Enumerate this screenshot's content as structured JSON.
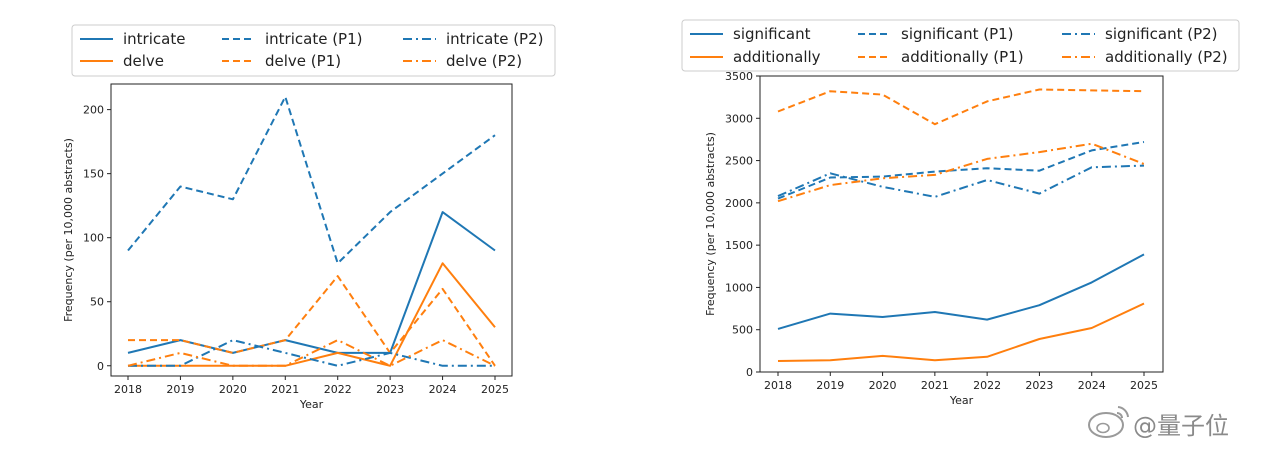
{
  "colors": {
    "blue": "#1f77b4",
    "orange": "#ff7f0e"
  },
  "watermark": {
    "text": "@量子位",
    "icon": "weibo-logo-icon"
  },
  "chart_data": [
    {
      "type": "line",
      "x": [
        2018,
        2019,
        2020,
        2021,
        2022,
        2023,
        2024,
        2025
      ],
      "xlabel": "Year",
      "ylabel": "Frequency (per 10,000 abstracts)",
      "ylim": [
        -8,
        220
      ],
      "yticks": [
        0,
        50,
        100,
        150,
        200
      ],
      "grid": false,
      "legend_position": "top",
      "series": [
        {
          "name": "intricate",
          "color": "#1f77b4",
          "style": "solid",
          "values": [
            10,
            20,
            10,
            20,
            10,
            10,
            120,
            90
          ]
        },
        {
          "name": "delve",
          "color": "#ff7f0e",
          "style": "solid",
          "values": [
            0,
            0,
            0,
            0,
            10,
            0,
            80,
            30
          ]
        },
        {
          "name": "intricate (P1)",
          "color": "#1f77b4",
          "style": "dashed",
          "values": [
            90,
            140,
            130,
            210,
            80,
            120,
            150,
            180
          ]
        },
        {
          "name": "delve (P1)",
          "color": "#ff7f0e",
          "style": "dashed",
          "values": [
            20,
            20,
            10,
            20,
            70,
            10,
            60,
            0
          ]
        },
        {
          "name": "intricate (P2)",
          "color": "#1f77b4",
          "style": "dashdot",
          "values": [
            0,
            0,
            20,
            10,
            0,
            10,
            0,
            0
          ]
        },
        {
          "name": "delve (P2)",
          "color": "#ff7f0e",
          "style": "dashdot",
          "values": [
            0,
            10,
            0,
            0,
            20,
            0,
            20,
            0
          ]
        }
      ]
    },
    {
      "type": "line",
      "x": [
        2018,
        2019,
        2020,
        2021,
        2022,
        2023,
        2024,
        2025
      ],
      "xlabel": "Year",
      "ylabel": "Frequency (per 10,000 abstracts)",
      "ylim": [
        0,
        3500
      ],
      "yticks": [
        0,
        500,
        1000,
        1500,
        2000,
        2500,
        3000,
        3500
      ],
      "grid": false,
      "legend_position": "top",
      "series": [
        {
          "name": "significant",
          "color": "#1f77b4",
          "style": "solid",
          "values": [
            510,
            690,
            650,
            710,
            620,
            790,
            1060,
            1390
          ]
        },
        {
          "name": "additionally",
          "color": "#ff7f0e",
          "style": "solid",
          "values": [
            130,
            140,
            190,
            140,
            180,
            390,
            520,
            810
          ]
        },
        {
          "name": "significant (P1)",
          "color": "#1f77b4",
          "style": "dashed",
          "values": [
            2050,
            2300,
            2310,
            2370,
            2410,
            2380,
            2620,
            2720
          ]
        },
        {
          "name": "additionally (P1)",
          "color": "#ff7f0e",
          "style": "dashed",
          "values": [
            3080,
            3320,
            3280,
            2930,
            3200,
            3340,
            3330,
            3320
          ]
        },
        {
          "name": "significant (P2)",
          "color": "#1f77b4",
          "style": "dashdot",
          "values": [
            2080,
            2350,
            2190,
            2070,
            2270,
            2110,
            2420,
            2440
          ]
        },
        {
          "name": "additionally (P2)",
          "color": "#ff7f0e",
          "style": "dashdot",
          "values": [
            2020,
            2210,
            2290,
            2330,
            2520,
            2600,
            2700,
            2460
          ]
        }
      ]
    }
  ]
}
